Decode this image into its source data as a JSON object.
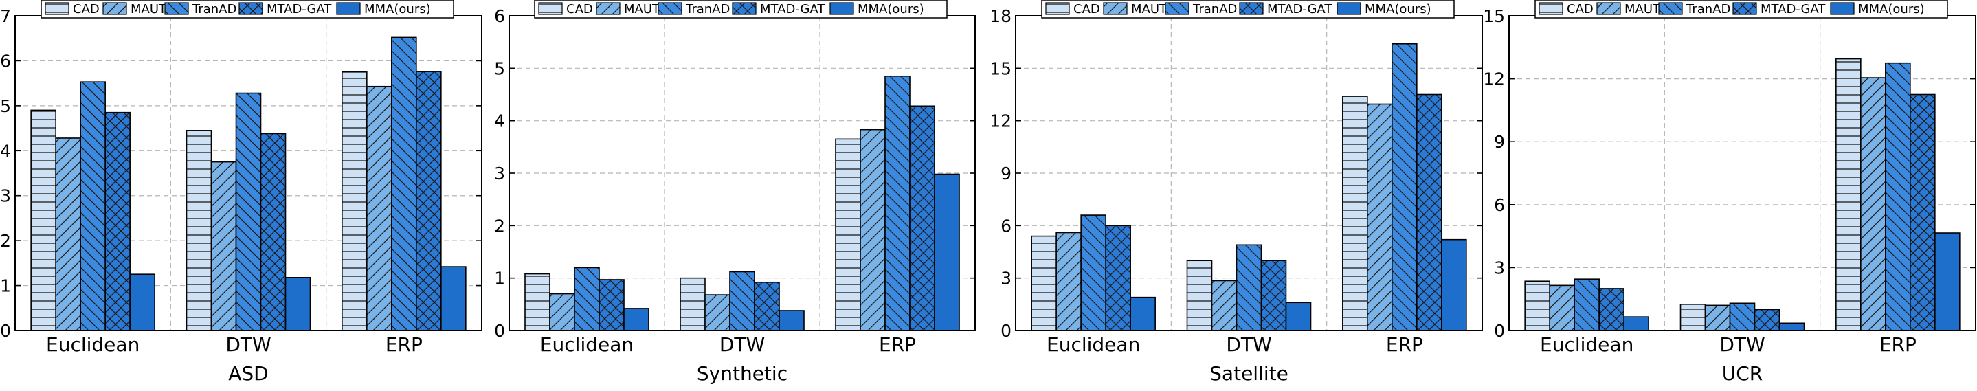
{
  "legend": [
    "CAD",
    "MAUT",
    "TranAD",
    "MTAD-GAT",
    "MMA(ours)"
  ],
  "colors": {
    "CAD": "#cfe2f5",
    "MAUT": "#7ab3e8",
    "TranAD": "#3c8ae0",
    "MTAD-GAT": "#2b7ad6",
    "MMA(ours)": "#1e6fcc"
  },
  "patterns": {
    "CAD": "horizontal-lines",
    "MAUT": "forward-diagonal",
    "TranAD": "back-diagonal",
    "MTAD-GAT": "crosshatch",
    "MMA(ours)": "solid"
  },
  "chart_data": [
    {
      "type": "bar",
      "xlabel": "ASD",
      "categories": [
        "Euclidean",
        "DTW",
        "ERP"
      ],
      "ylim": [
        0,
        7
      ],
      "yticks": [
        0,
        1,
        2,
        3,
        4,
        5,
        6,
        7
      ],
      "grid": true,
      "legend_position": "top",
      "series": [
        {
          "name": "CAD",
          "values": [
            4.9,
            4.45,
            5.75
          ]
        },
        {
          "name": "MAUT",
          "values": [
            4.28,
            3.75,
            5.43
          ]
        },
        {
          "name": "TranAD",
          "values": [
            5.53,
            5.28,
            6.52
          ]
        },
        {
          "name": "MTAD-GAT",
          "values": [
            4.85,
            4.38,
            5.76
          ]
        },
        {
          "name": "MMA(ours)",
          "values": [
            1.25,
            1.18,
            1.42
          ]
        }
      ]
    },
    {
      "type": "bar",
      "xlabel": "Synthetic",
      "categories": [
        "Euclidean",
        "DTW",
        "ERP"
      ],
      "ylim": [
        0,
        6
      ],
      "yticks": [
        0,
        1,
        2,
        3,
        4,
        5,
        6
      ],
      "grid": true,
      "legend_position": "top",
      "series": [
        {
          "name": "CAD",
          "values": [
            1.08,
            1.0,
            3.65
          ]
        },
        {
          "name": "MAUT",
          "values": [
            0.7,
            0.68,
            3.83
          ]
        },
        {
          "name": "TranAD",
          "values": [
            1.2,
            1.12,
            4.85
          ]
        },
        {
          "name": "MTAD-GAT",
          "values": [
            0.97,
            0.92,
            4.28
          ]
        },
        {
          "name": "MMA(ours)",
          "values": [
            0.42,
            0.38,
            2.98
          ]
        }
      ]
    },
    {
      "type": "bar",
      "xlabel": "Satellite",
      "categories": [
        "Euclidean",
        "DTW",
        "ERP"
      ],
      "ylim": [
        0,
        18
      ],
      "yticks": [
        0,
        3,
        6,
        9,
        12,
        15,
        18
      ],
      "grid": true,
      "legend_position": "top",
      "series": [
        {
          "name": "CAD",
          "values": [
            5.4,
            4.0,
            13.4
          ]
        },
        {
          "name": "MAUT",
          "values": [
            5.6,
            2.85,
            12.95
          ]
        },
        {
          "name": "TranAD",
          "values": [
            6.6,
            4.9,
            16.4
          ]
        },
        {
          "name": "MTAD-GAT",
          "values": [
            6.0,
            4.0,
            13.5
          ]
        },
        {
          "name": "MMA(ours)",
          "values": [
            1.9,
            1.6,
            5.2
          ]
        }
      ]
    },
    {
      "type": "bar",
      "xlabel": "UCR",
      "categories": [
        "Euclidean",
        "DTW",
        "ERP"
      ],
      "ylim": [
        0,
        15
      ],
      "yticks": [
        0,
        3,
        6,
        9,
        12,
        15
      ],
      "grid": true,
      "legend_position": "top",
      "series": [
        {
          "name": "CAD",
          "values": [
            2.35,
            1.25,
            12.95
          ]
        },
        {
          "name": "MAUT",
          "values": [
            2.15,
            1.2,
            12.05
          ]
        },
        {
          "name": "TranAD",
          "values": [
            2.45,
            1.3,
            12.75
          ]
        },
        {
          "name": "MTAD-GAT",
          "values": [
            2.0,
            1.0,
            11.25
          ]
        },
        {
          "name": "MMA(ours)",
          "values": [
            0.65,
            0.35,
            4.65
          ]
        }
      ]
    }
  ]
}
